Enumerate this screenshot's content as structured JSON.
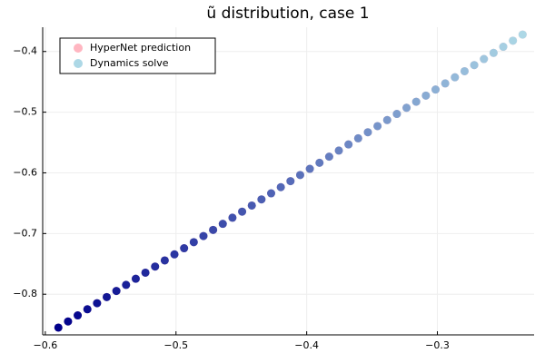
{
  "chart_data": {
    "type": "scatter",
    "title": "ũ distribution, case 1",
    "series": [
      {
        "name": "HyperNet prediction",
        "color": "#ffb6c1",
        "x": [
          -0.59,
          -0.5826,
          -0.5752,
          -0.5678,
          -0.5604,
          -0.553,
          -0.5456,
          -0.5382,
          -0.5308,
          -0.5234,
          -0.516,
          -0.5086,
          -0.5012,
          -0.4938,
          -0.4864,
          -0.479,
          -0.4716,
          -0.4642,
          -0.4568,
          -0.4494,
          -0.442,
          -0.4346,
          -0.4272,
          -0.4198,
          -0.4124,
          -0.405,
          -0.3976,
          -0.3902,
          -0.3828,
          -0.3754,
          -0.368,
          -0.3606,
          -0.3532,
          -0.3458,
          -0.3384,
          -0.331,
          -0.3236,
          -0.3162,
          -0.3088,
          -0.3014,
          -0.294,
          -0.2866,
          -0.2792,
          -0.2718,
          -0.2644,
          -0.257,
          -0.2496,
          -0.2422,
          -0.2348
        ],
        "values": [
          -0.855,
          -0.8449,
          -0.8349,
          -0.8248,
          -0.8148,
          -0.8047,
          -0.7946,
          -0.7846,
          -0.7745,
          -0.7645,
          -0.7544,
          -0.7443,
          -0.7343,
          -0.7242,
          -0.7142,
          -0.7041,
          -0.694,
          -0.684,
          -0.6739,
          -0.6639,
          -0.6538,
          -0.6437,
          -0.6337,
          -0.6236,
          -0.6136,
          -0.6035,
          -0.5934,
          -0.5834,
          -0.5733,
          -0.5633,
          -0.5532,
          -0.5431,
          -0.5331,
          -0.523,
          -0.513,
          -0.5029,
          -0.4928,
          -0.4828,
          -0.4727,
          -0.4627,
          -0.4526,
          -0.4425,
          -0.4325,
          -0.4224,
          -0.4124,
          -0.4023,
          -0.3922,
          -0.3822,
          -0.3721
        ]
      },
      {
        "name": "Dynamics solve",
        "color": "#add8e6",
        "gradient": [
          "#00008b",
          "#add8e6"
        ],
        "x": [
          -0.59,
          -0.5826,
          -0.5752,
          -0.5678,
          -0.5604,
          -0.553,
          -0.5456,
          -0.5382,
          -0.5308,
          -0.5234,
          -0.516,
          -0.5086,
          -0.5012,
          -0.4938,
          -0.4864,
          -0.479,
          -0.4716,
          -0.4642,
          -0.4568,
          -0.4494,
          -0.442,
          -0.4346,
          -0.4272,
          -0.4198,
          -0.4124,
          -0.405,
          -0.3976,
          -0.3902,
          -0.3828,
          -0.3754,
          -0.368,
          -0.3606,
          -0.3532,
          -0.3458,
          -0.3384,
          -0.331,
          -0.3236,
          -0.3162,
          -0.3088,
          -0.3014,
          -0.294,
          -0.2866,
          -0.2792,
          -0.2718,
          -0.2644,
          -0.257,
          -0.2496,
          -0.2422,
          -0.2348
        ],
        "values": [
          -0.855,
          -0.8449,
          -0.8349,
          -0.8248,
          -0.8148,
          -0.8047,
          -0.7946,
          -0.7846,
          -0.7745,
          -0.7645,
          -0.7544,
          -0.7443,
          -0.7343,
          -0.7242,
          -0.7142,
          -0.7041,
          -0.694,
          -0.684,
          -0.6739,
          -0.6639,
          -0.6538,
          -0.6437,
          -0.6337,
          -0.6236,
          -0.6136,
          -0.6035,
          -0.5934,
          -0.5834,
          -0.5733,
          -0.5633,
          -0.5532,
          -0.5431,
          -0.5331,
          -0.523,
          -0.513,
          -0.5029,
          -0.4928,
          -0.4828,
          -0.4727,
          -0.4627,
          -0.4526,
          -0.4425,
          -0.4325,
          -0.4224,
          -0.4124,
          -0.4023,
          -0.3922,
          -0.3822,
          -0.3721
        ]
      }
    ],
    "xlim": [
      -0.602,
      -0.226
    ],
    "ylim": [
      -0.867,
      -0.36
    ],
    "xticks": [
      {
        "value": -0.6,
        "label": "−0.6"
      },
      {
        "value": -0.5,
        "label": "−0.5"
      },
      {
        "value": -0.4,
        "label": "−0.4"
      },
      {
        "value": -0.3,
        "label": "−0.3"
      }
    ],
    "yticks": [
      {
        "value": -0.8,
        "label": "−0.8"
      },
      {
        "value": -0.7,
        "label": "−0.7"
      },
      {
        "value": -0.6,
        "label": "−0.6"
      },
      {
        "value": -0.5,
        "label": "−0.5"
      },
      {
        "value": -0.4,
        "label": "−0.4"
      }
    ],
    "grid": true,
    "legend": "top-left"
  }
}
